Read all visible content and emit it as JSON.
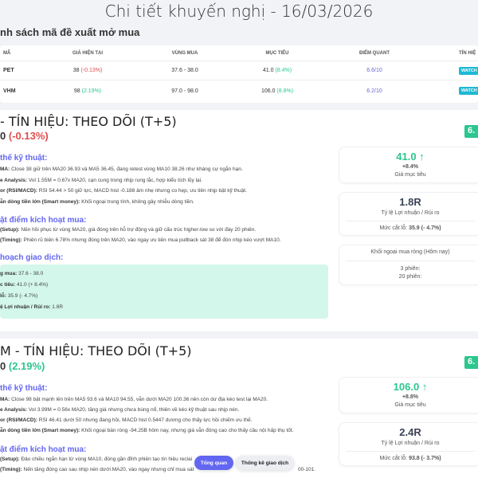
{
  "title": "Chi tiết khuyến nghị - 16/03/2026",
  "list_heading": "nh sách mã đề xuất mở mua",
  "table": {
    "headers": [
      "MÃ",
      "GIÁ HIỆN TẠI",
      "VÙNG MUA",
      "MỤC TIÊU",
      "ĐIỂM QUANT",
      "TÍN HIỆ"
    ],
    "rows": [
      {
        "code": "PET",
        "price": "38",
        "change": "(-0.13%)",
        "zone": "37.6 - 38.0",
        "target": "41.0",
        "target_pct": "(8.4%)",
        "quant": "6.6/10",
        "signal": "WATCH"
      },
      {
        "code": "VHM",
        "price": "98",
        "change": "(2.19%)",
        "zone": "97.0 - 98.0",
        "target": "106.0",
        "target_pct": "(8.8%)",
        "quant": "6.2/10",
        "signal": "WATCH"
      }
    ]
  },
  "cards": [
    {
      "heading": "- TÍN HIỆU: THEO DÕI (T+5)",
      "price": "0",
      "change": "(-0.13%)",
      "badge": "6.",
      "tech_title": "thế kỹ thuật:",
      "tech": [
        {
          "label": "MA:",
          "text": " Close 38 giữ trên MA20 36.93 và MA5 36.45, đang retest vùng MA10 38.26 như kháng cự ngắn hạn."
        },
        {
          "label": "e Analysis:",
          "text": " Vol 1.55M = 0.67x MA20, cạn cung trong nhịp rung lắc, hợp kiểu tích lũy lại."
        },
        {
          "label": "or (RSI/MACD):",
          "text": " RSI 54.44 > 50 giữ lực, MACD hist -0.188 âm nhẹ nhưng co hẹp, ưu tiên nhịp bật kỹ thuật."
        },
        {
          "label": "ẫn dòng tiền lớn (Smart money):",
          "text": " Khối ngoại trung tính, không gây nhiễu dòng tiền."
        }
      ],
      "trigger_title": "ặt điểm kích hoạt mua:",
      "trigger": [
        {
          "label": "(Setup):",
          "text": " Nền hồi phục từ vùng MA20, giá đóng trên hỗ trợ động và giữ cấu trúc higher-low so với đáy 20 phiên."
        },
        {
          "label": "(Timing):",
          "text": " Phiên rũ biên 6.78% nhưng đóng trên MA20, vào ngay ưu tiên mua pullback sát 38 để đón nhịp kéo vượt MA10."
        }
      ],
      "plan_title": "hoạch giao dịch:",
      "plan": [
        {
          "label": "g mua:",
          "text": " 37.6 - 38.0"
        },
        {
          "label": "c tiêu:",
          "text": " 41.0 (+ 8.4%)"
        },
        {
          "label": " lỗ:",
          "text": " 35.9 (- 4.7%)"
        },
        {
          "label": "ệ Lợi nhuận / Rủi ro:",
          "text": " 1.8R"
        }
      ],
      "target_value": "41.0 ↑",
      "target_pct": "+8.4%",
      "target_label": "Giá mục tiêu",
      "rr_value": "1.8R",
      "rr_label": "Tỷ lệ Lợi nhuận / Rủi ro",
      "stop_label": "Mức cắt lỗ: ",
      "stop_value": "35.9 (- 4.7%)",
      "foreign_title": "Khối ngoại mua ròng (Hôm nay)",
      "foreign_3": "3 phiên:",
      "foreign_20": "20 phiên:"
    },
    {
      "heading": "M  - TÍN HIỆU: THEO DÕI (T+5)",
      "price": "0",
      "change": "(2.19%)",
      "badge": "6.",
      "tech_title": "thế kỹ thuật:",
      "tech": [
        {
          "label": "MA:",
          "text": " Close 98 bật mạnh lên trên MA5 93.6 và MA10 94.55, vẫn dưới MA20 100.36 nên còn dư địa kéo test lại MA20."
        },
        {
          "label": "e Analysis:",
          "text": " Vol 3.99M = 0.56x MA20, tăng giá nhưng chưa bùng nổ, thiên về kéo kỹ thuật sau nhịp nén."
        },
        {
          "label": "or (RSI/MACD):",
          "text": " RSI 46.41 dưới 50 nhưng đang hồi, MACD hist 0.5447 dương cho thấy lực hồi chiếm ưu thế."
        },
        {
          "label": "ẫn dòng tiền lớn (Smart money):",
          "text": " Khối ngoại bán ròng -94.25B hôm nay, nhưng giá vẫn đóng cao cho thấy cầu nội hấp thụ tốt."
        }
      ],
      "trigger_title": "ặt điểm kích hoạt mua:",
      "trigger": [
        {
          "label": "(Setup):",
          "text": " Đảo chiều ngắn hạn từ vùng MA10, đóng gần đỉnh phiên tạo tín hiệu reclai"
        },
        {
          "label": "(Timing):",
          "text": " Nến tăng đóng cao sau nhịp nén dưới MA20, vào ngay nhưng chỉ mua sát"
        }
      ],
      "trigger_tail": "00-101.",
      "target_value": "106.0 ↑",
      "target_pct": "+8.8%",
      "target_label": "Giá mục tiêu",
      "rr_value": "2.4R",
      "rr_label": "Tỷ lệ Lợi nhuận / Rủi ro",
      "stop_label": "Mức cắt lỗ: ",
      "stop_value": "93.8 (- 3.7%)"
    }
  ],
  "nav": {
    "overview": "Tổng quan",
    "stats": "Thống kê giao dịch"
  },
  "colors": {
    "accent": "#6366f1",
    "positive": "#2cc68f",
    "negative": "#e04e4e",
    "watch": "#1fb8d4",
    "plan_bg": "#d3f7ea"
  }
}
